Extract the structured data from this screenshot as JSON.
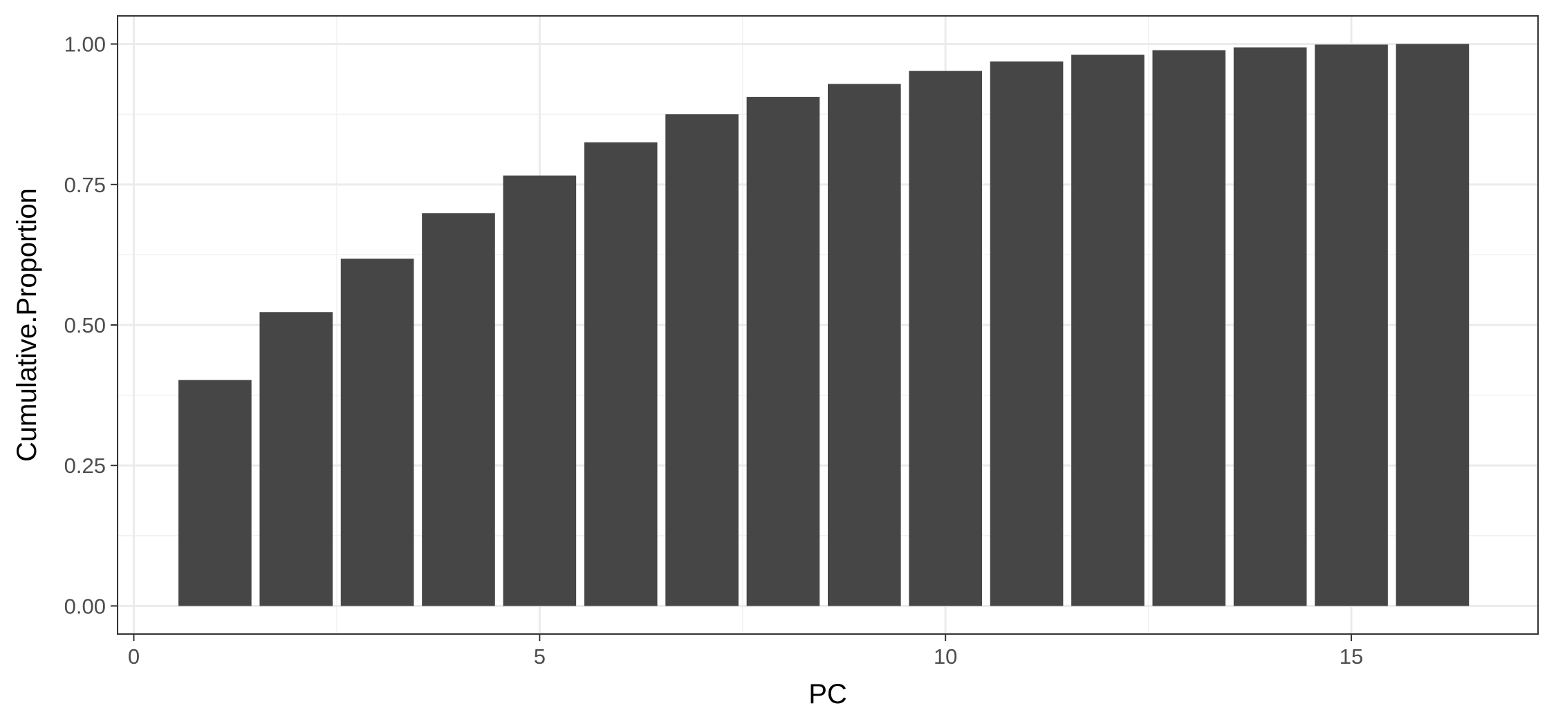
{
  "chart_data": {
    "type": "bar",
    "title": "",
    "xlabel": "PC",
    "ylabel": "Cumulative.Proportion",
    "x": [
      1,
      2,
      3,
      4,
      5,
      6,
      7,
      8,
      9,
      10,
      11,
      12,
      13,
      14,
      15,
      16
    ],
    "values": [
      0.402,
      0.523,
      0.618,
      0.699,
      0.766,
      0.825,
      0.875,
      0.906,
      0.929,
      0.952,
      0.969,
      0.981,
      0.989,
      0.994,
      0.999,
      1.0
    ],
    "xlim": [
      -0.2,
      17.3
    ],
    "ylim": [
      -0.05,
      1.05
    ],
    "x_ticks": [
      0,
      5,
      10,
      15
    ],
    "x_tick_labels": [
      "0",
      "5",
      "10",
      "15"
    ],
    "y_ticks": [
      0,
      0.25,
      0.5,
      0.75,
      1.0
    ],
    "y_tick_labels": [
      "0.00",
      "0.25",
      "0.50",
      "0.75",
      "1.00"
    ],
    "grid": true,
    "legend": "none",
    "colors": {
      "bar": "#464646",
      "grid_major": "#ebebeb",
      "grid_minor": "#f2f2f2",
      "panel_border": "#333333",
      "tick_label": "#4d4d4d",
      "axis_title": "#000000",
      "background": "#ffffff"
    }
  }
}
